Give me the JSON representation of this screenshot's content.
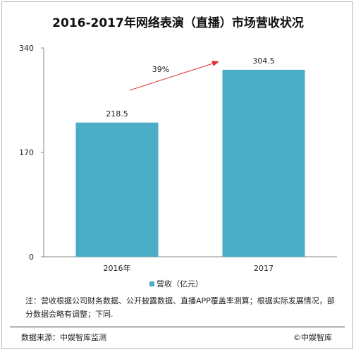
{
  "chart_data": {
    "type": "bar",
    "title": "2016-2017年网络表演（直播）市场营收状况",
    "categories": [
      "2016年",
      "2017"
    ],
    "series": [
      {
        "name": "营收（亿元）",
        "values": [
          218.5,
          304.5
        ],
        "color": "#4bacc6"
      }
    ],
    "data_labels": [
      "218.5",
      "304.5"
    ],
    "y_ticks": [
      0,
      170,
      340
    ],
    "ylim": [
      0,
      340
    ],
    "grid": false,
    "legend": "bottom",
    "annotation": {
      "text": "39%",
      "arrow_color": "#e03030"
    }
  },
  "footer": {
    "note": "注：营收根据公司财务数据、公开披露数据、直播APP覆盖率测算；根据实际发展情况，部分数据会略有调整；下同.",
    "source": "数据来源：中娱智库监测",
    "copyright": "©中娱智库"
  }
}
